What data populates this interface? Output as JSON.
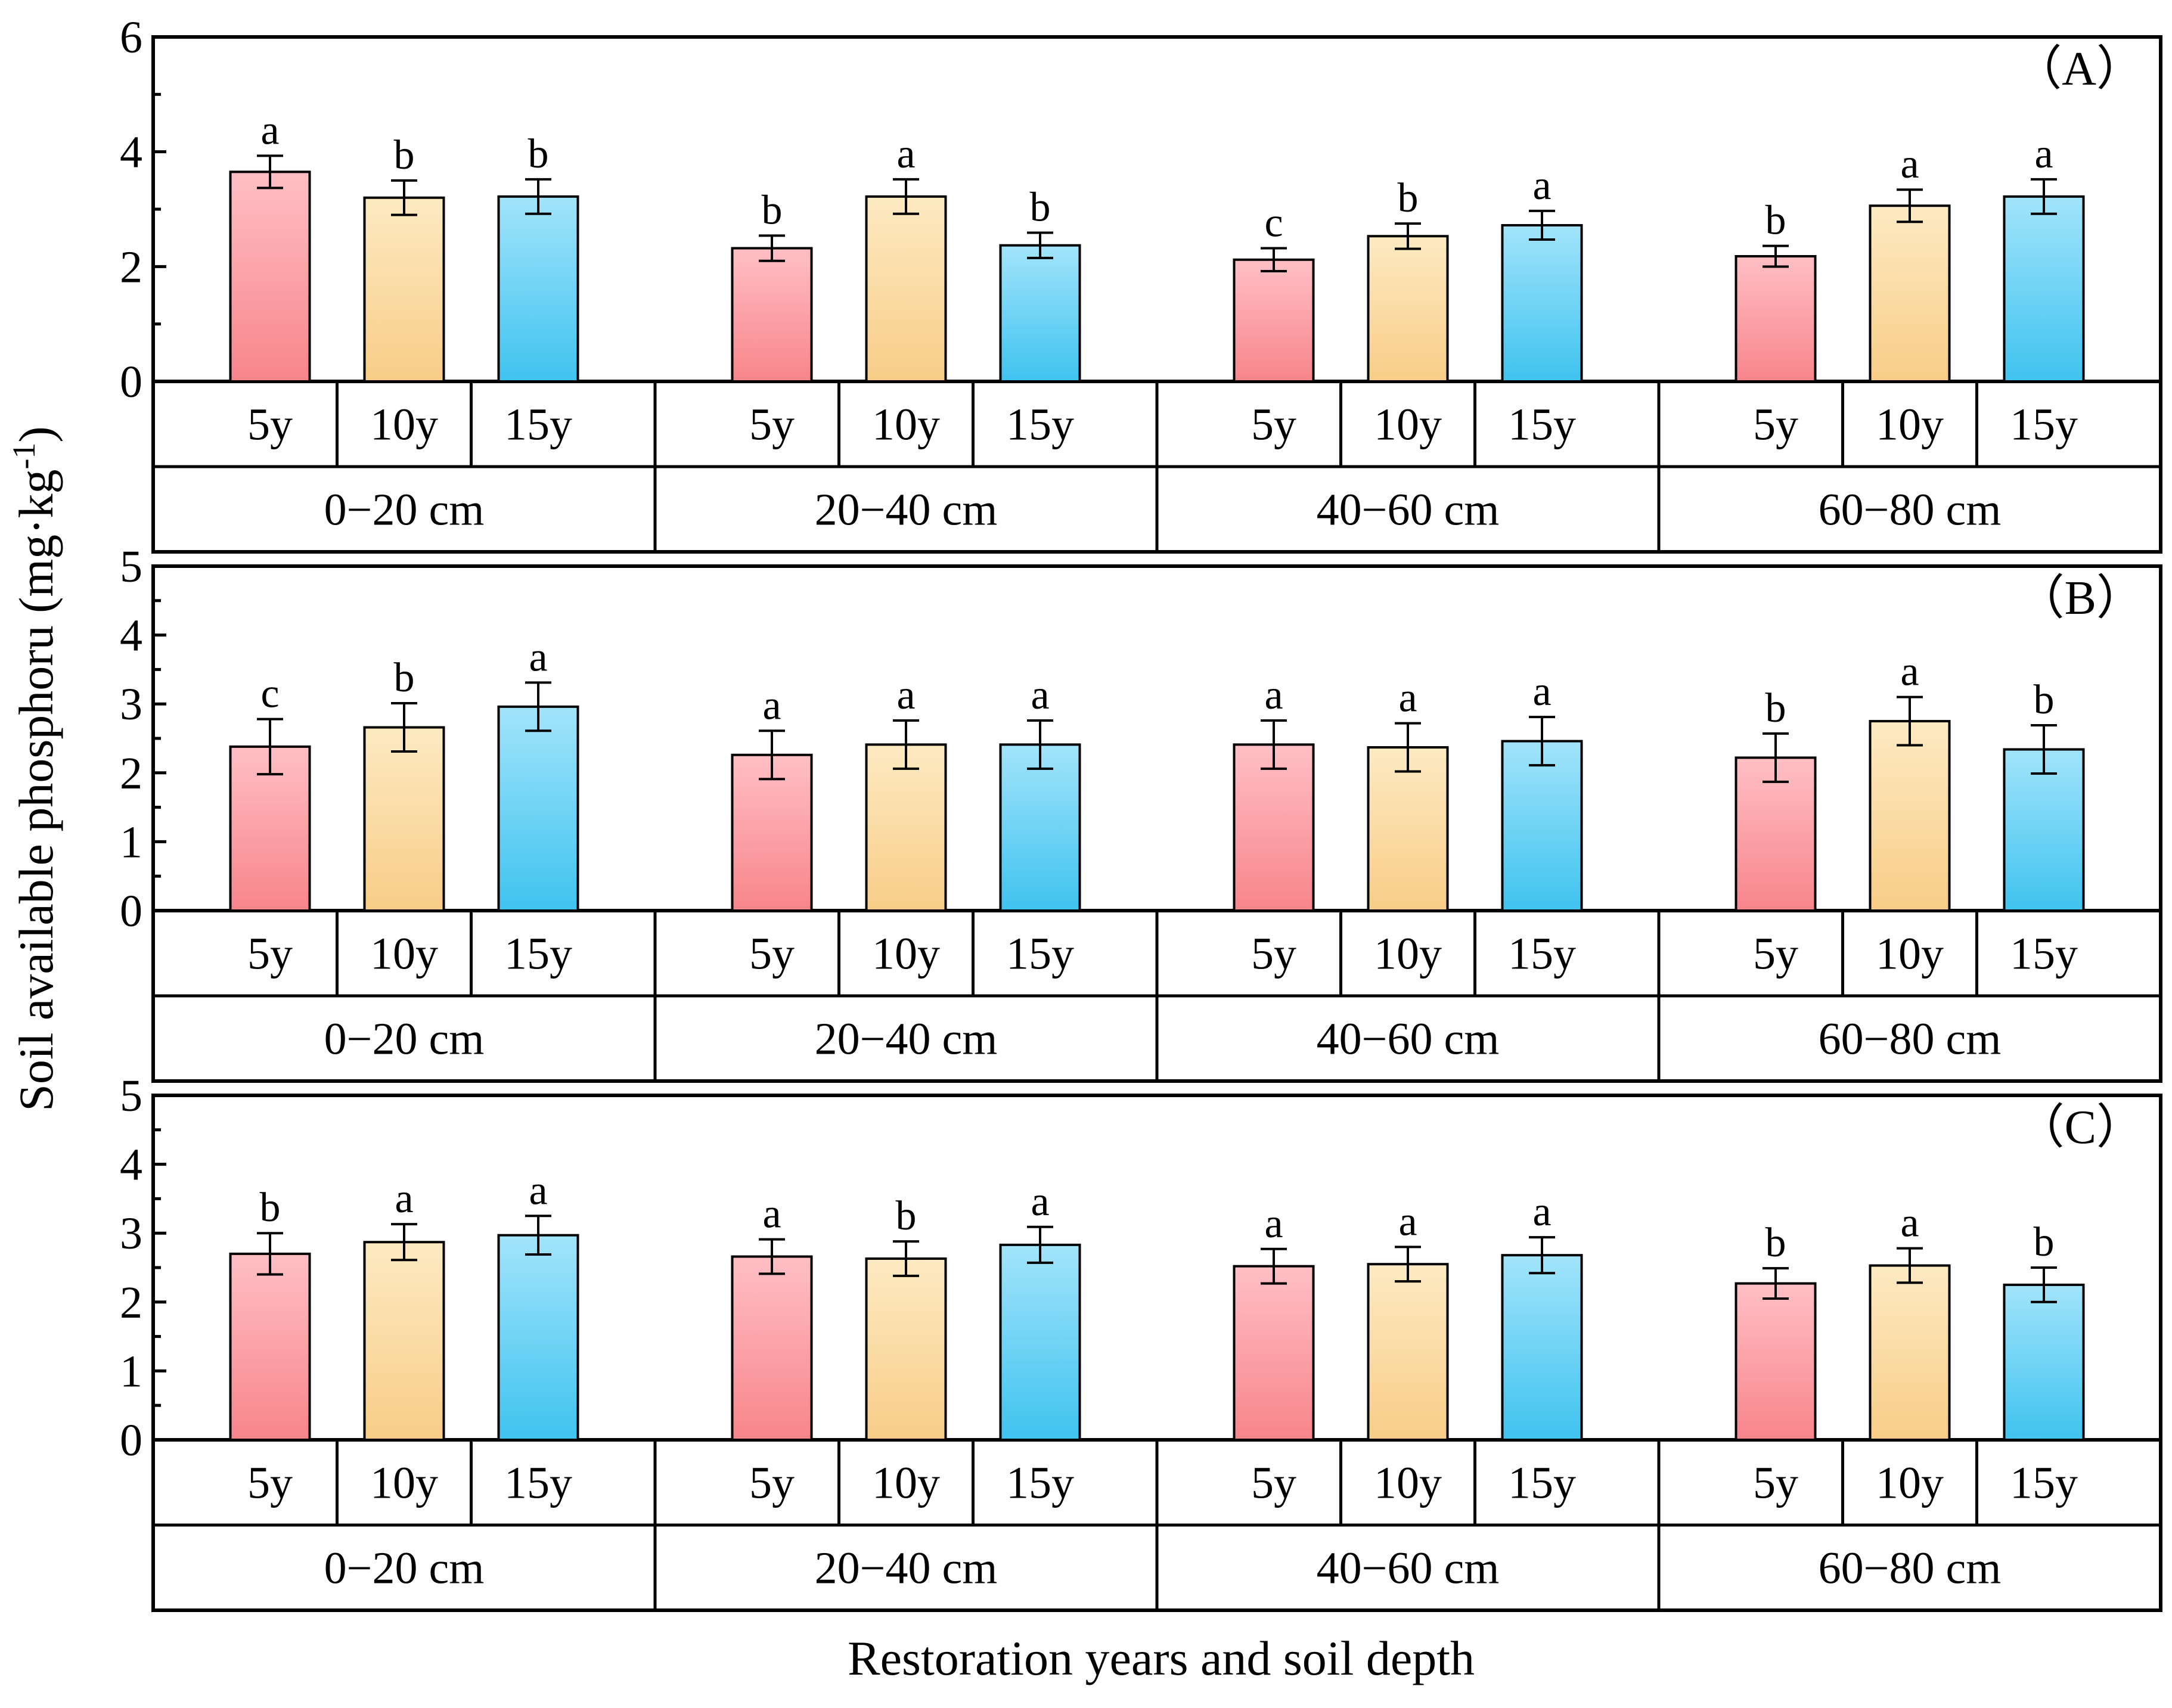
{
  "figure": {
    "ylabel": "Soil available phosphoru (mg·kg",
    "ylabel_sup": "-1",
    "ylabel_close": ")",
    "xlabel": "Restoration years and soil depth"
  },
  "colors": {
    "y5": [
      "#ffbfc5",
      "#f7858b"
    ],
    "y10": [
      "#fdeac2",
      "#f8cd87"
    ],
    "y15": [
      "#a2e4fb",
      "#3fc3ef"
    ],
    "axis": "#000000"
  },
  "chart_data": [
    {
      "type": "bar",
      "panel_label": "（A）",
      "ylim": [
        0,
        6
      ],
      "yticks": [
        0,
        2,
        4,
        6
      ],
      "categories": [
        "5y",
        "10y",
        "15y",
        "5y",
        "10y",
        "15y",
        "5y",
        "10y",
        "15y",
        "5y",
        "10y",
        "15y"
      ],
      "groups": [
        "0−20 cm",
        "20−40 cm",
        "40−60 cm",
        "60−80 cm"
      ],
      "values": [
        3.65,
        3.2,
        3.22,
        2.32,
        3.22,
        2.37,
        2.12,
        2.53,
        2.72,
        2.18,
        3.06,
        3.22
      ],
      "errors": [
        0.28,
        0.3,
        0.3,
        0.22,
        0.3,
        0.22,
        0.2,
        0.22,
        0.25,
        0.18,
        0.28,
        0.3
      ],
      "letters": [
        "a",
        "b",
        "b",
        "b",
        "a",
        "b",
        "c",
        "b",
        "a",
        "b",
        "a",
        "a"
      ]
    },
    {
      "type": "bar",
      "panel_label": "（B）",
      "ylim": [
        0,
        5
      ],
      "yticks": [
        0,
        1,
        2,
        3,
        4,
        5
      ],
      "categories": [
        "5y",
        "10y",
        "15y",
        "5y",
        "10y",
        "15y",
        "5y",
        "10y",
        "15y",
        "5y",
        "10y",
        "15y"
      ],
      "groups": [
        "0−20 cm",
        "20−40 cm",
        "40−60 cm",
        "60−80 cm"
      ],
      "values": [
        2.38,
        2.66,
        2.96,
        2.26,
        2.41,
        2.41,
        2.41,
        2.37,
        2.46,
        2.22,
        2.75,
        2.34
      ],
      "errors": [
        0.4,
        0.35,
        0.35,
        0.35,
        0.35,
        0.35,
        0.35,
        0.35,
        0.35,
        0.35,
        0.35,
        0.35
      ],
      "letters": [
        "c",
        "b",
        "a",
        "a",
        "a",
        "a",
        "a",
        "a",
        "a",
        "b",
        "a",
        "b"
      ]
    },
    {
      "type": "bar",
      "panel_label": "（C）",
      "ylim": [
        0,
        5
      ],
      "yticks": [
        0,
        1,
        2,
        3,
        4,
        5
      ],
      "categories": [
        "5y",
        "10y",
        "15y",
        "5y",
        "10y",
        "15y",
        "5y",
        "10y",
        "15y",
        "5y",
        "10y",
        "15y"
      ],
      "groups": [
        "0−20 cm",
        "20−40 cm",
        "40−60 cm",
        "60−80 cm"
      ],
      "values": [
        2.7,
        2.87,
        2.97,
        2.66,
        2.63,
        2.83,
        2.52,
        2.55,
        2.68,
        2.27,
        2.53,
        2.25
      ],
      "errors": [
        0.3,
        0.26,
        0.28,
        0.25,
        0.25,
        0.26,
        0.25,
        0.25,
        0.26,
        0.22,
        0.25,
        0.25
      ],
      "letters": [
        "b",
        "a",
        "a",
        "a",
        "b",
        "a",
        "a",
        "a",
        "a",
        "b",
        "a",
        "b"
      ]
    }
  ]
}
